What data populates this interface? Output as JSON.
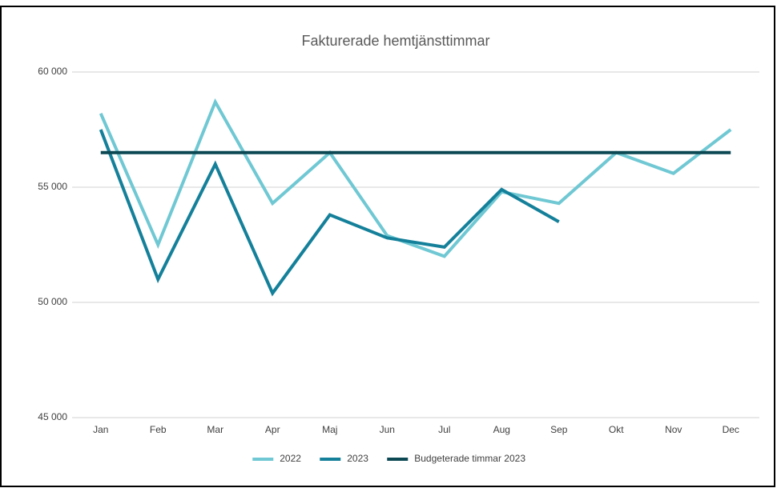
{
  "chart_data": {
    "type": "line",
    "title": "Fakturerade hemtjänsttimmar",
    "categories": [
      "Jan",
      "Feb",
      "Mar",
      "Apr",
      "Maj",
      "Jun",
      "Jul",
      "Aug",
      "Sep",
      "Okt",
      "Nov",
      "Dec"
    ],
    "series": [
      {
        "name": "2022",
        "color": "#6fc8d3",
        "values": [
          58200,
          52500,
          58700,
          54300,
          56500,
          52900,
          52000,
          54800,
          54300,
          56500,
          55600,
          57500
        ]
      },
      {
        "name": "2023",
        "color": "#14809a",
        "values": [
          57500,
          51000,
          56000,
          50400,
          53800,
          52800,
          52400,
          54900,
          53500,
          null,
          null,
          null
        ]
      },
      {
        "name": "Budgeterade timmar 2023",
        "color": "#0c4853",
        "values": [
          56500,
          56500,
          56500,
          56500,
          56500,
          56500,
          56500,
          56500,
          56500,
          56500,
          56500,
          56500
        ]
      }
    ],
    "ylim": [
      45000,
      60000
    ],
    "yticks": [
      {
        "value": 45000,
        "label": "45 000"
      },
      {
        "value": 50000,
        "label": "50 000"
      },
      {
        "value": 55000,
        "label": "55 000"
      },
      {
        "value": 60000,
        "label": "60 000"
      }
    ],
    "grid": true,
    "legend": "bottom"
  }
}
